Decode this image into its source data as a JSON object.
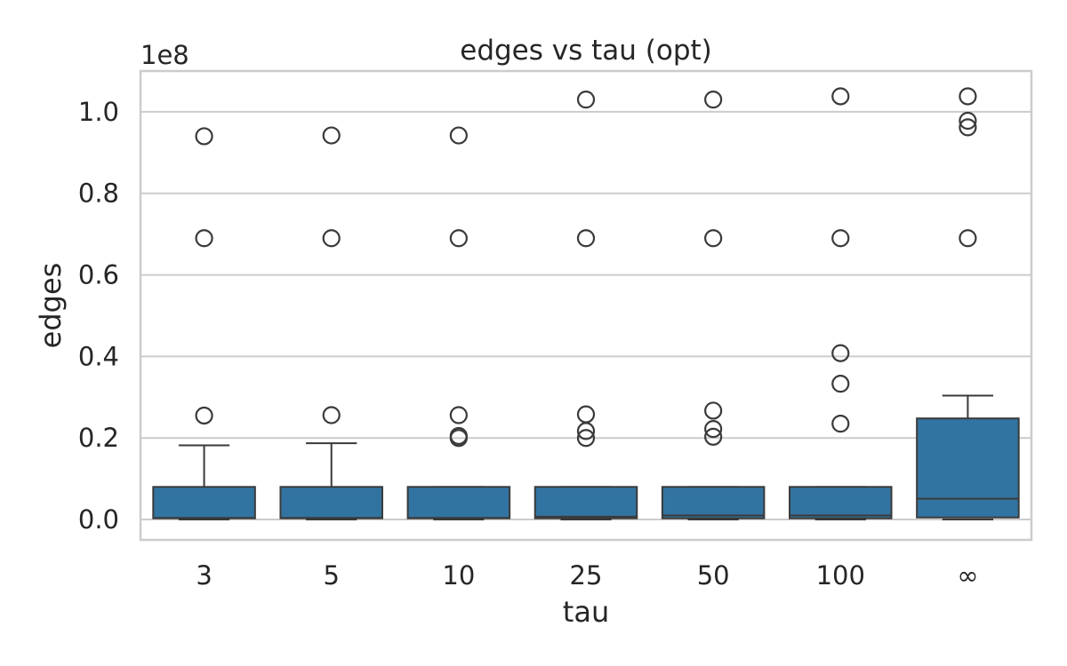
{
  "chart_data": {
    "type": "box",
    "title": "edges vs tau (opt)",
    "xlabel": "tau",
    "ylabel": "edges",
    "y_offset_text": "1e8",
    "y_scale": 100000000,
    "ylim": [
      -0.05,
      1.1
    ],
    "yticks": [
      0.0,
      0.2,
      0.4,
      0.6,
      0.8,
      1.0
    ],
    "ytick_labels": [
      "0.0",
      "0.2",
      "0.4",
      "0.6",
      "0.8",
      "1.0"
    ],
    "categories": [
      "3",
      "5",
      "10",
      "25",
      "50",
      "100",
      "∞"
    ],
    "grid": true,
    "box_color": "#3274a1",
    "edge_color": "#3a3a3a",
    "boxes": [
      {
        "category": "3",
        "whisker_low": 0.0,
        "q1": 0.003,
        "median": 0.004,
        "q3": 0.08,
        "whisker_high": 0.182,
        "fliers": [
          0.255,
          0.69,
          0.94
        ]
      },
      {
        "category": "5",
        "whisker_low": 0.0,
        "q1": 0.003,
        "median": 0.004,
        "q3": 0.08,
        "whisker_high": 0.187,
        "fliers": [
          0.256,
          0.69,
          0.942
        ]
      },
      {
        "category": "10",
        "whisker_low": 0.0,
        "q1": 0.003,
        "median": 0.004,
        "q3": 0.08,
        "whisker_high": 0.08,
        "fliers": [
          0.2,
          0.205,
          0.256,
          0.69,
          0.942
        ]
      },
      {
        "category": "25",
        "whisker_low": 0.0,
        "q1": 0.003,
        "median": 0.007,
        "q3": 0.08,
        "whisker_high": 0.08,
        "fliers": [
          0.2,
          0.217,
          0.258,
          0.69,
          1.03
        ]
      },
      {
        "category": "50",
        "whisker_low": 0.0,
        "q1": 0.003,
        "median": 0.01,
        "q3": 0.08,
        "whisker_high": 0.08,
        "fliers": [
          0.203,
          0.222,
          0.267,
          0.69,
          1.03
        ]
      },
      {
        "category": "100",
        "whisker_low": 0.0,
        "q1": 0.003,
        "median": 0.01,
        "q3": 0.08,
        "whisker_high": 0.08,
        "fliers": [
          0.235,
          0.333,
          0.408,
          0.69,
          1.038
        ]
      },
      {
        "category": "∞",
        "whisker_low": 0.0,
        "q1": 0.005,
        "median": 0.051,
        "q3": 0.248,
        "whisker_high": 0.304,
        "fliers": [
          0.69,
          0.962,
          0.978,
          1.038
        ]
      }
    ]
  }
}
